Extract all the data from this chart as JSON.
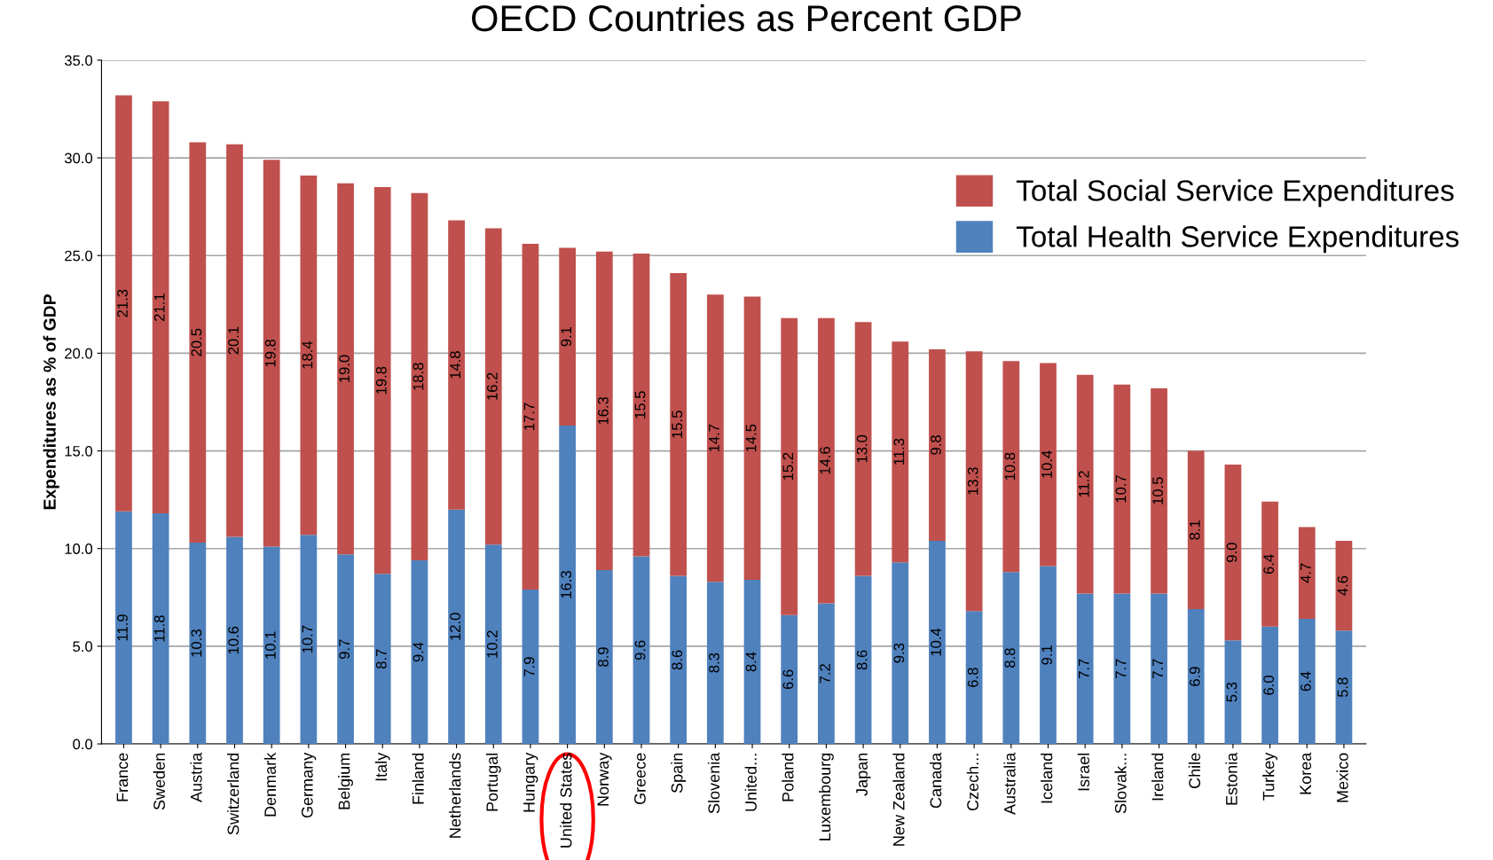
{
  "chart_data": {
    "type": "bar",
    "title": "OECD Countries as Percent GDP",
    "ylabel": "Expenditures as % of GDP",
    "categories": [
      "France",
      "Sweden",
      "Austria",
      "Switzerland",
      "Denmark",
      "Germany",
      "Belgium",
      "Italy",
      "Finland",
      "Netherlands",
      "Portugal",
      "Hungary",
      "United States",
      "Norway",
      "Greece",
      "Spain",
      "Slovenia",
      "United...",
      "Poland",
      "Luxembourg",
      "Japan",
      "New Zealand",
      "Canada",
      "Czech...",
      "Australia",
      "Iceland",
      "Israel",
      "Slovak...",
      "Ireland",
      "Chile",
      "Estonia",
      "Turkey",
      "Korea",
      "Mexico"
    ],
    "series": [
      {
        "name": "Total Health Service Expenditures",
        "color": "#4f81bd",
        "values": [
          11.9,
          11.8,
          10.3,
          10.6,
          10.1,
          10.7,
          9.7,
          8.7,
          9.4,
          12.0,
          10.2,
          7.9,
          16.3,
          8.9,
          9.6,
          8.6,
          8.3,
          8.4,
          6.6,
          7.2,
          8.6,
          9.3,
          10.4,
          6.8,
          8.8,
          9.1,
          7.7,
          7.7,
          7.7,
          6.9,
          5.3,
          6.0,
          6.4,
          5.8
        ],
        "value_labels": [
          "11.9",
          "11.8",
          "10.3",
          "10.6",
          "10.1",
          "10.7",
          "9.7",
          "8.7",
          "9.4",
          "12.0",
          "10.2",
          "7.9",
          "16.3",
          "8.9",
          "9.6",
          "8.6",
          "8.3",
          "8.4",
          "6.6",
          "7.2",
          "8.6",
          "9.3",
          "10.4",
          "6.8",
          "8.8",
          "9.1",
          "7.7",
          "7.7",
          "7.7",
          "6.9",
          "5.3",
          "6.0",
          "6.4",
          "5.8"
        ]
      },
      {
        "name": "Total Social Service Expenditures",
        "color": "#c0504d",
        "values": [
          21.3,
          21.1,
          20.5,
          20.1,
          19.8,
          18.4,
          19.0,
          19.8,
          18.8,
          14.8,
          16.2,
          17.7,
          9.1,
          16.3,
          15.5,
          15.5,
          14.7,
          14.5,
          15.2,
          14.6,
          13.0,
          11.3,
          9.8,
          13.3,
          10.8,
          10.4,
          11.2,
          10.7,
          10.5,
          8.1,
          9.0,
          6.4,
          4.7,
          4.6
        ],
        "value_labels": [
          "21.3",
          "21.1",
          "20.5",
          "20.1",
          "19.8",
          "18.4",
          "19.0",
          "19.8",
          "18.8",
          "14.8",
          "16.2",
          "17.7",
          "9.1",
          "16.3",
          "15.5",
          "15.5",
          "14.7",
          "14.5",
          "15.2",
          "14.6",
          "13.0",
          "11.3",
          "9.8",
          "13.3",
          "10.8",
          "10.4",
          "11.2",
          "10.7",
          "10.5",
          "8.1",
          "9.0",
          "6.4",
          "4.7",
          "4.6"
        ]
      }
    ],
    "stacked": true,
    "ylim": [
      0,
      35
    ],
    "yticks": [
      {
        "value": 0,
        "label": "0.0"
      },
      {
        "value": 5,
        "label": "5.0"
      },
      {
        "value": 10,
        "label": "10.0"
      },
      {
        "value": 15,
        "label": "15.0"
      },
      {
        "value": 20,
        "label": "20.0"
      },
      {
        "value": 25,
        "label": "25.0"
      },
      {
        "value": 30,
        "label": "30.0"
      },
      {
        "value": 35,
        "label": "35.0"
      }
    ],
    "grid": "y",
    "legend": "top right"
  }
}
